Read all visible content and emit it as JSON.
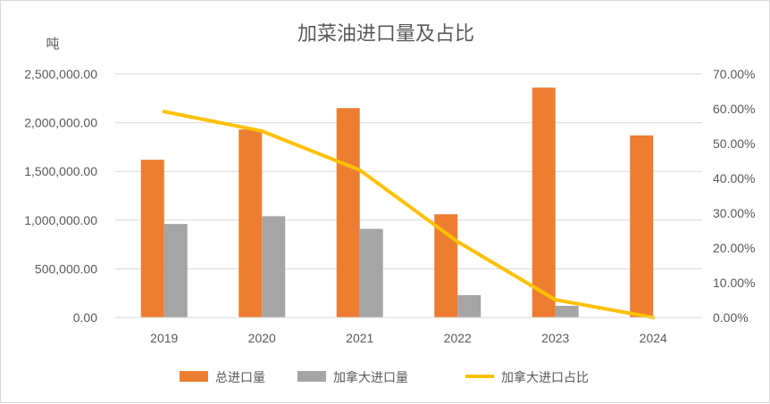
{
  "chart_data": {
    "type": "bar",
    "title": "加菜油进口量及占比",
    "ylabel": "吨",
    "categories": [
      "2019",
      "2020",
      "2021",
      "2022",
      "2023",
      "2024"
    ],
    "ylim": [
      0,
      2500000
    ],
    "y2lim": [
      0,
      0.7
    ],
    "yticks": [
      "0.00",
      "500,000.00",
      "1,000,000.00",
      "1,500,000.00",
      "2,000,000.00",
      "2,500,000.00"
    ],
    "y2ticks": [
      "0.00%",
      "10.00%",
      "20.00%",
      "30.00%",
      "40.00%",
      "50.00%",
      "60.00%",
      "70.00%"
    ],
    "series": [
      {
        "name": "总进口量",
        "type": "bar",
        "axis": "left",
        "color": "#ed7d31",
        "values": [
          1620000,
          1930000,
          2150000,
          1060000,
          2360000,
          1870000
        ]
      },
      {
        "name": "加拿大进口量",
        "type": "bar",
        "axis": "left",
        "color": "#a5a5a5",
        "values": [
          960000,
          1040000,
          910000,
          230000,
          120000,
          0
        ]
      },
      {
        "name": "加拿大进口占比",
        "type": "line",
        "axis": "right",
        "color": "#ffc000",
        "values": [
          0.592,
          0.536,
          0.424,
          0.218,
          0.051,
          0.0
        ]
      }
    ],
    "legend": "bottom"
  }
}
